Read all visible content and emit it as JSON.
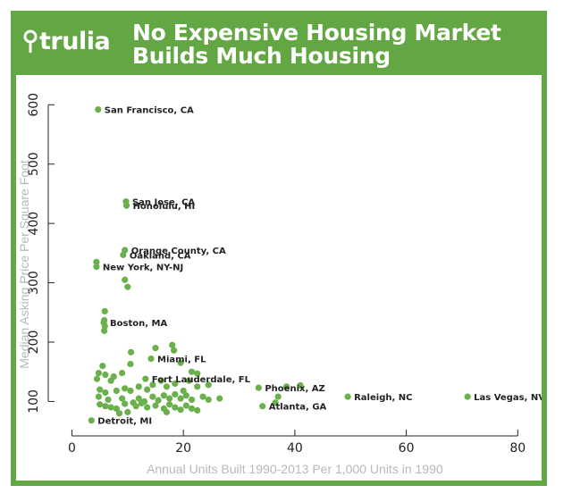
{
  "header": {
    "logo_text": "trulia",
    "title_line1": "No Expensive Housing Market",
    "title_line2": "Builds Much Housing"
  },
  "colors": {
    "brand_green": "#63a744",
    "point_green": "#6ab04c"
  },
  "icons": {
    "logo": "location-pin-icon"
  },
  "chart_data": {
    "type": "scatter",
    "xlabel": "Annual Units Built 1990-2013 Per 1,000 Units in 1990",
    "ylabel": "Median Asking Price Per Square Foot",
    "xlim": [
      -2,
      83
    ],
    "ylim": [
      60,
      620
    ],
    "xticks": [
      0,
      20,
      40,
      60,
      80
    ],
    "yticks": [
      100,
      200,
      300,
      400,
      500,
      600
    ],
    "grid": false,
    "labeled_points": [
      {
        "label": "San Francisco, CA",
        "x": 4.7,
        "y": 592
      },
      {
        "label": "San Jose, CA",
        "x": 9.7,
        "y": 437
      },
      {
        "label": "Honolulu, HI",
        "x": 9.8,
        "y": 430
      },
      {
        "label": "Orange County, CA",
        "x": 9.5,
        "y": 355
      },
      {
        "label": "Oakland, CA",
        "x": 9.2,
        "y": 347
      },
      {
        "label": "New York, NY-NJ",
        "x": 4.4,
        "y": 327
      },
      {
        "label": "Boston, MA",
        "x": 5.7,
        "y": 233
      },
      {
        "label": "Miami, FL",
        "x": 14.2,
        "y": 172
      },
      {
        "label": "Fort Lauderdale, FL",
        "x": 13.2,
        "y": 138
      },
      {
        "label": "Phoenix, AZ",
        "x": 33.5,
        "y": 123
      },
      {
        "label": "Raleigh, NC",
        "x": 49.5,
        "y": 108
      },
      {
        "label": "Las Vegas, NV",
        "x": 71.0,
        "y": 108
      },
      {
        "label": "Atlanta, GA",
        "x": 34.2,
        "y": 92
      },
      {
        "label": "Detroit, MI",
        "x": 3.5,
        "y": 68
      }
    ],
    "points": [
      {
        "x": 4.4,
        "y": 335
      },
      {
        "x": 9.5,
        "y": 305
      },
      {
        "x": 10.0,
        "y": 293
      },
      {
        "x": 5.9,
        "y": 252
      },
      {
        "x": 5.8,
        "y": 237
      },
      {
        "x": 5.9,
        "y": 227
      },
      {
        "x": 5.8,
        "y": 219
      },
      {
        "x": 10.6,
        "y": 183
      },
      {
        "x": 15.0,
        "y": 190
      },
      {
        "x": 18.0,
        "y": 195
      },
      {
        "x": 18.3,
        "y": 186
      },
      {
        "x": 10.5,
        "y": 163
      },
      {
        "x": 19.5,
        "y": 165
      },
      {
        "x": 21.5,
        "y": 150
      },
      {
        "x": 22.5,
        "y": 147
      },
      {
        "x": 4.8,
        "y": 148
      },
      {
        "x": 5.5,
        "y": 160
      },
      {
        "x": 6.0,
        "y": 145
      },
      {
        "x": 7.5,
        "y": 142
      },
      {
        "x": 9.0,
        "y": 148
      },
      {
        "x": 4.5,
        "y": 138
      },
      {
        "x": 7.0,
        "y": 135
      },
      {
        "x": 5.0,
        "y": 120
      },
      {
        "x": 6.0,
        "y": 115
      },
      {
        "x": 8.0,
        "y": 118
      },
      {
        "x": 9.5,
        "y": 122
      },
      {
        "x": 10.5,
        "y": 118
      },
      {
        "x": 12.0,
        "y": 125
      },
      {
        "x": 13.5,
        "y": 120
      },
      {
        "x": 14.5,
        "y": 128
      },
      {
        "x": 16.0,
        "y": 135
      },
      {
        "x": 17.0,
        "y": 125
      },
      {
        "x": 18.5,
        "y": 130
      },
      {
        "x": 20.0,
        "y": 118
      },
      {
        "x": 21.0,
        "y": 135
      },
      {
        "x": 22.5,
        "y": 125
      },
      {
        "x": 24.5,
        "y": 128
      },
      {
        "x": 4.8,
        "y": 108
      },
      {
        "x": 6.5,
        "y": 103
      },
      {
        "x": 9.0,
        "y": 105
      },
      {
        "x": 11.0,
        "y": 98
      },
      {
        "x": 12.0,
        "y": 105
      },
      {
        "x": 13.0,
        "y": 100
      },
      {
        "x": 14.5,
        "y": 108
      },
      {
        "x": 15.5,
        "y": 102
      },
      {
        "x": 16.5,
        "y": 110
      },
      {
        "x": 17.5,
        "y": 105
      },
      {
        "x": 18.5,
        "y": 112
      },
      {
        "x": 19.5,
        "y": 105
      },
      {
        "x": 20.5,
        "y": 110
      },
      {
        "x": 21.5,
        "y": 103
      },
      {
        "x": 23.5,
        "y": 108
      },
      {
        "x": 24.5,
        "y": 103
      },
      {
        "x": 26.5,
        "y": 105
      },
      {
        "x": 5.0,
        "y": 95
      },
      {
        "x": 6.0,
        "y": 92
      },
      {
        "x": 7.0,
        "y": 90
      },
      {
        "x": 8.0,
        "y": 88
      },
      {
        "x": 9.5,
        "y": 96
      },
      {
        "x": 11.5,
        "y": 92
      },
      {
        "x": 12.5,
        "y": 97
      },
      {
        "x": 13.5,
        "y": 90
      },
      {
        "x": 15.0,
        "y": 93
      },
      {
        "x": 16.5,
        "y": 88
      },
      {
        "x": 17.5,
        "y": 95
      },
      {
        "x": 18.5,
        "y": 90
      },
      {
        "x": 19.5,
        "y": 86
      },
      {
        "x": 20.5,
        "y": 93
      },
      {
        "x": 21.5,
        "y": 88
      },
      {
        "x": 22.5,
        "y": 85
      },
      {
        "x": 8.5,
        "y": 80
      },
      {
        "x": 10.0,
        "y": 82
      },
      {
        "x": 17.0,
        "y": 82
      },
      {
        "x": 36.5,
        "y": 98
      },
      {
        "x": 37.0,
        "y": 108
      },
      {
        "x": 38.5,
        "y": 125
      },
      {
        "x": 41.0,
        "y": 127
      }
    ]
  }
}
